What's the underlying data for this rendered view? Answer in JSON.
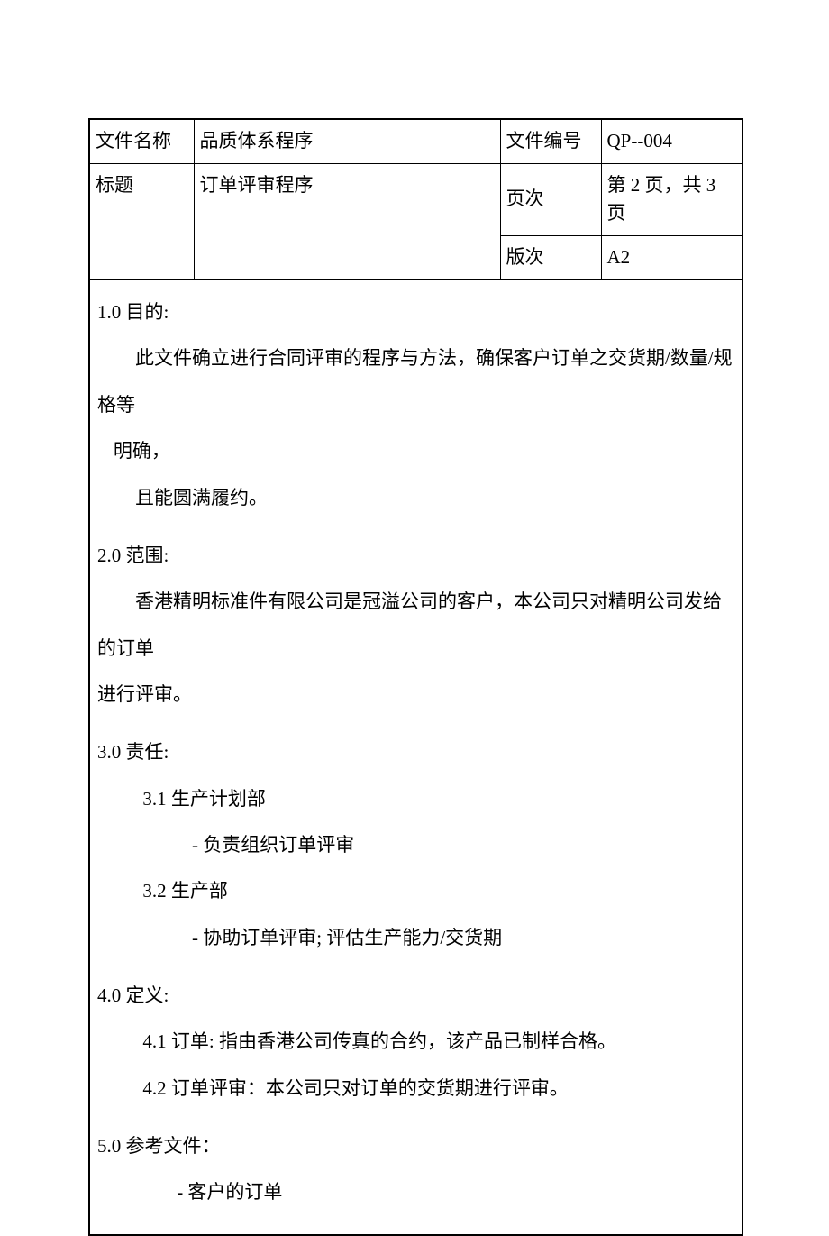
{
  "colors": {
    "page_background": "#ffffff",
    "text": "#000000",
    "border": "#000000"
  },
  "typography": {
    "body_font_family": "SimSun",
    "body_fontsize_pt": 16,
    "line_height": 2.4
  },
  "header": {
    "rows": [
      {
        "label": "文件名称",
        "value": "品质体系程序",
        "label2": "文件编号",
        "value2": "QP--004"
      },
      {
        "label": "标题",
        "value": "订单评审程序",
        "label2": "页次",
        "value2": "第 2 页，共 3 页"
      },
      {
        "label": "",
        "value": "",
        "label2": "版次",
        "value2": "A2"
      }
    ]
  },
  "sections": {
    "s1": {
      "heading": "1.0  目的:",
      "para1": "此文件确立进行合同评审的程序与方法，确保客户订单之交货期/数量/规格等",
      "para2": "明确，",
      "para3": "且能圆满履约。"
    },
    "s2": {
      "heading": "2.0  范围:",
      "para1": "香港精明标准件有限公司是冠溢公司的客户，本公司只对精明公司发给的订单",
      "para2": "进行评审。"
    },
    "s3": {
      "heading": "3.0  责任:",
      "item1": "3.1  生产计划部",
      "item1_sub": "- 负责组织订单评审",
      "item2": "3.2   生产部",
      "item2_sub": "- 协助订单评审; 评估生产能力/交货期"
    },
    "s4": {
      "heading": "4.0  定义:",
      "item1": "4.1  订单: 指由香港公司传真的合约，该产品已制样合格。",
      "item2": "4.2  订单评审：本公司只对订单的交货期进行评审。"
    },
    "s5": {
      "heading": "5.0  参考文件：",
      "item1": "-   客户的订单"
    }
  }
}
